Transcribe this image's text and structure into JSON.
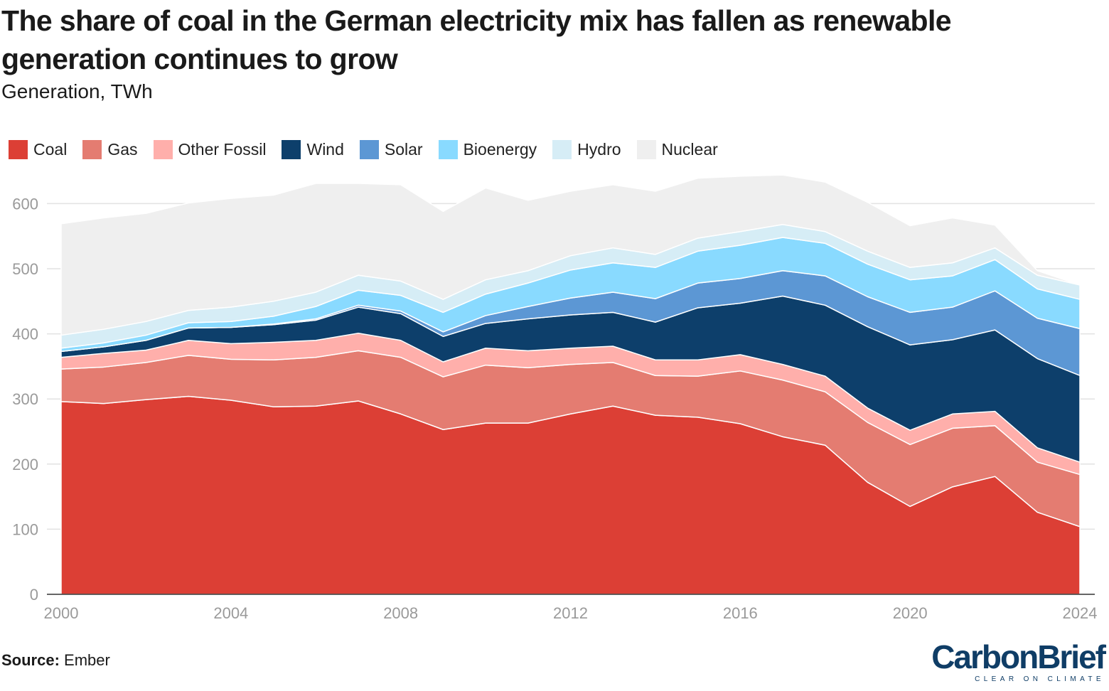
{
  "header": {
    "title": "The share of coal in the German electricity mix has fallen as renewable generation continues to grow",
    "subtitle": "Generation, TWh"
  },
  "footer": {
    "source_label": "Source:",
    "source_value": "Ember",
    "brand_name": "CarbonBrief",
    "brand_tagline": "CLEAR ON CLIMATE"
  },
  "chart_data": {
    "type": "area",
    "stacked": true,
    "legend_placement": "top-left",
    "grid": true,
    "ylim": [
      0,
      650
    ],
    "yticks": [
      0,
      100,
      200,
      300,
      400,
      500,
      600
    ],
    "xticks": [
      2000,
      2004,
      2008,
      2012,
      2016,
      2020,
      2024
    ],
    "x": [
      2000,
      2001,
      2002,
      2003,
      2004,
      2005,
      2006,
      2007,
      2008,
      2009,
      2010,
      2011,
      2012,
      2013,
      2014,
      2015,
      2016,
      2017,
      2018,
      2019,
      2020,
      2021,
      2022,
      2023,
      2024
    ],
    "series": [
      {
        "name": "Coal",
        "color": "#dc3f35",
        "values": [
          296,
          293,
          299,
          304,
          298,
          288,
          289,
          297,
          277,
          253,
          263,
          263,
          277,
          289,
          275,
          272,
          262,
          242,
          229,
          172,
          135,
          165,
          181,
          126,
          104
        ]
      },
      {
        "name": "Gas",
        "color": "#e47c71",
        "values": [
          50,
          56,
          57,
          63,
          63,
          72,
          75,
          77,
          87,
          81,
          89,
          85,
          76,
          67,
          61,
          63,
          81,
          87,
          82,
          92,
          95,
          90,
          78,
          77,
          80
        ]
      },
      {
        "name": "Other Fossil",
        "color": "#ffafab",
        "values": [
          18,
          21,
          19,
          23,
          24,
          27,
          26,
          27,
          26,
          23,
          26,
          26,
          25,
          25,
          24,
          25,
          25,
          24,
          24,
          22,
          22,
          22,
          22,
          22,
          19
        ]
      },
      {
        "name": "Wind",
        "color": "#0d3f6b",
        "values": [
          9,
          10,
          15,
          19,
          25,
          27,
          31,
          40,
          41,
          39,
          38,
          49,
          51,
          52,
          58,
          80,
          79,
          105,
          109,
          125,
          131,
          114,
          125,
          137,
          133
        ]
      },
      {
        "name": "Solar",
        "color": "#5c97d4",
        "values": [
          0,
          0,
          0,
          0,
          0,
          1,
          2,
          3,
          4,
          7,
          12,
          19,
          26,
          31,
          36,
          38,
          38,
          39,
          45,
          46,
          50,
          50,
          60,
          62,
          72
        ]
      },
      {
        "name": "Bioenergy",
        "color": "#89daff",
        "values": [
          5,
          6,
          8,
          8,
          9,
          12,
          19,
          23,
          24,
          30,
          33,
          36,
          43,
          45,
          48,
          49,
          51,
          51,
          50,
          50,
          50,
          48,
          48,
          45,
          45
        ]
      },
      {
        "name": "Hydro",
        "color": "#d6edf6",
        "values": [
          20,
          21,
          21,
          19,
          22,
          23,
          22,
          23,
          22,
          20,
          22,
          19,
          22,
          23,
          20,
          20,
          21,
          20,
          18,
          20,
          19,
          20,
          18,
          21,
          22
        ]
      },
      {
        "name": "Nuclear",
        "color": "#efefef",
        "values": [
          171,
          171,
          166,
          165,
          167,
          163,
          167,
          141,
          148,
          135,
          141,
          108,
          99,
          97,
          97,
          92,
          85,
          76,
          76,
          75,
          64,
          69,
          35,
          7,
          0
        ]
      }
    ]
  }
}
